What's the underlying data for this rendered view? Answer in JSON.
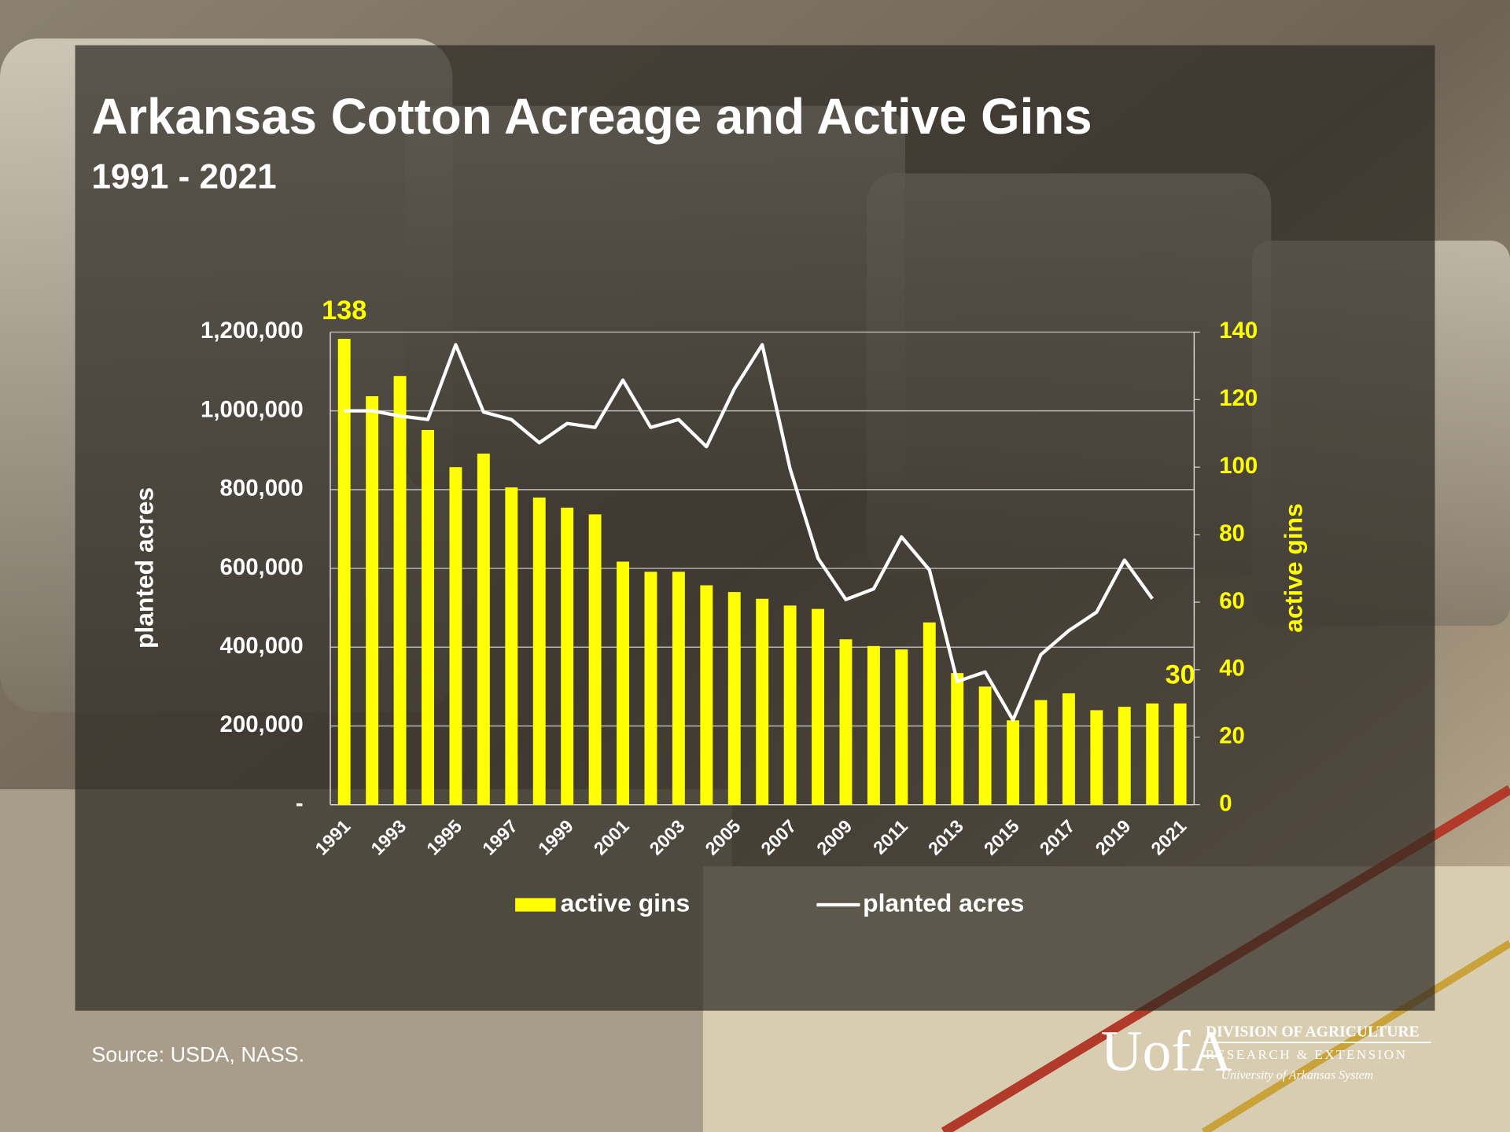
{
  "chart_data": {
    "type": "bar-line",
    "title": "Arkansas Cotton Acreage and Active Gins",
    "subtitle": "1991 - 2021",
    "ylabel": "planted acres",
    "y2label": "active gins",
    "categories": [
      "1991",
      null,
      "1993",
      null,
      "1995",
      null,
      "1997",
      null,
      "1999",
      null,
      "2001",
      null,
      "2003",
      null,
      "2005",
      null,
      "2007",
      null,
      "2009",
      null,
      "2011",
      null,
      "2013",
      null,
      "2015",
      null,
      "2017",
      null,
      "2019",
      null,
      "2021"
    ],
    "series": [
      {
        "name": "active gins",
        "type": "bar",
        "axis": "y2",
        "color": "#ffff00",
        "values": [
          138,
          121,
          127,
          111,
          100,
          104,
          94,
          91,
          88,
          86,
          72,
          69,
          69,
          65,
          63,
          61,
          59,
          58,
          49,
          47,
          46,
          54,
          39,
          35,
          25,
          31,
          33,
          28,
          29,
          30,
          30
        ],
        "value_labels": [
          "138",
          null,
          null,
          null,
          null,
          null,
          null,
          null,
          null,
          null,
          null,
          null,
          null,
          null,
          null,
          null,
          null,
          null,
          null,
          null,
          null,
          null,
          null,
          null,
          null,
          null,
          null,
          null,
          null,
          null,
          "30"
        ]
      },
      {
        "name": "planted acres",
        "type": "line",
        "axis": "y",
        "color": "#ffffff",
        "values": [
          1000000,
          1000000,
          987000,
          978000,
          1168000,
          997000,
          978000,
          919000,
          968000,
          958000,
          1078000,
          958000,
          978000,
          909000,
          1056000,
          1168000,
          853000,
          626000,
          521000,
          548000,
          680000,
          596000,
          313000,
          337000,
          215000,
          381000,
          442000,
          489000,
          621000,
          523000,
          null
        ]
      }
    ],
    "ylim": [
      0,
      1200000
    ],
    "yticks": [
      {
        "value": 0,
        "label": "-"
      },
      {
        "value": 200000,
        "label": "200,000"
      },
      {
        "value": 400000,
        "label": "400,000"
      },
      {
        "value": 600000,
        "label": "600,000"
      },
      {
        "value": 800000,
        "label": "800,000"
      },
      {
        "value": 1000000,
        "label": "1,000,000"
      },
      {
        "value": 1200000,
        "label": "1,200,000"
      }
    ],
    "y2lim": [
      0,
      140
    ],
    "y2ticks": [
      0,
      20,
      40,
      60,
      80,
      100,
      120,
      140
    ],
    "grid": true,
    "legend": "bottom"
  },
  "footer": {
    "source": "Source: USDA, NASS.",
    "logo": "UofA",
    "org_line1": "DIVISION OF AGRICULTURE",
    "org_line2": "RESEARCH & EXTENSION",
    "org_line3": "University of Arkansas System"
  }
}
